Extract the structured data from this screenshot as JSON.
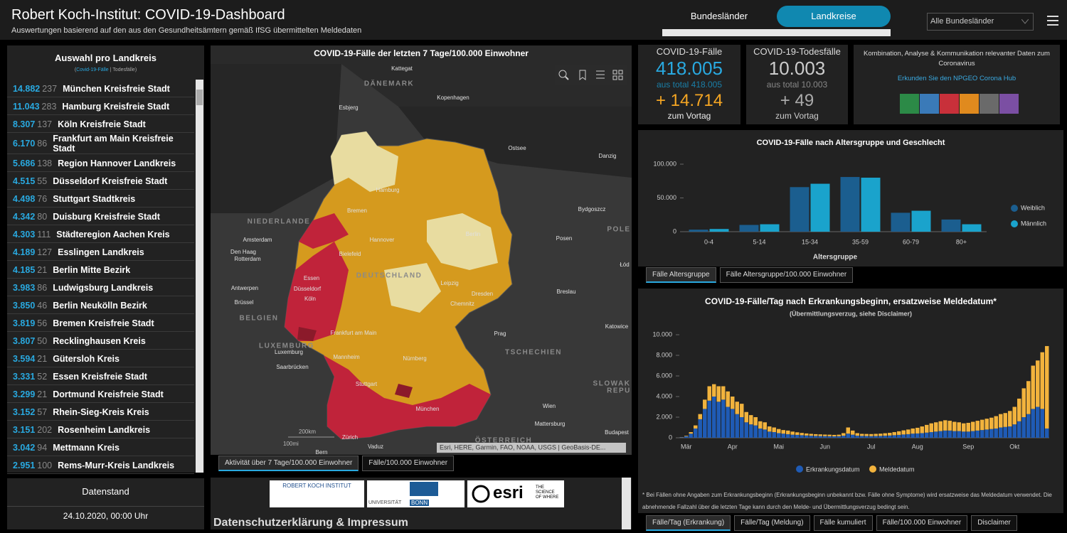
{
  "header": {
    "title": "Robert Koch-Institut: COVID-19-Dashboard",
    "subtitle": "Auswertungen basierend auf den aus den Gesundheitsämtern gemäß IfSG übermittelten Meldedaten",
    "tabs": [
      "Bundesländer",
      "Landkreise"
    ],
    "dropdown": "Alle Bundesländer"
  },
  "district_list": {
    "title": "Auswahl pro Landkreis",
    "legend": {
      "open": "(",
      "cases": "Covid-19-Fälle",
      "separator": "|",
      "deaths": "Todesfälle",
      "close": ")"
    },
    "rows": [
      [
        "14.882",
        "237",
        "München Kreisfreie Stadt"
      ],
      [
        "11.043",
        "283",
        "Hamburg Kreisfreie Stadt"
      ],
      [
        "8.307",
        "137",
        "Köln Kreisfreie Stadt"
      ],
      [
        "6.170",
        "86",
        "Frankfurt am Main Kreisfreie Stadt"
      ],
      [
        "5.686",
        "138",
        "Region Hannover Landkreis"
      ],
      [
        "4.515",
        "55",
        "Düsseldorf Kreisfreie Stadt"
      ],
      [
        "4.498",
        "76",
        "Stuttgart Stadtkreis"
      ],
      [
        "4.342",
        "80",
        "Duisburg Kreisfreie Stadt"
      ],
      [
        "4.303",
        "111",
        "Städteregion Aachen Kreis"
      ],
      [
        "4.189",
        "127",
        "Esslingen Landkreis"
      ],
      [
        "4.185",
        "21",
        "Berlin Mitte Bezirk"
      ],
      [
        "3.983",
        "86",
        "Ludwigsburg Landkreis"
      ],
      [
        "3.850",
        "46",
        "Berlin Neukölln Bezirk"
      ],
      [
        "3.819",
        "56",
        "Bremen Kreisfreie Stadt"
      ],
      [
        "3.807",
        "50",
        "Recklinghausen Kreis"
      ],
      [
        "3.594",
        "21",
        "Gütersloh Kreis"
      ],
      [
        "3.331",
        "52",
        "Essen Kreisfreie Stadt"
      ],
      [
        "3.299",
        "21",
        "Dortmund Kreisfreie Stadt"
      ],
      [
        "3.152",
        "57",
        "Rhein-Sieg-Kreis Kreis"
      ],
      [
        "3.151",
        "202",
        "Rosenheim Landkreis"
      ],
      [
        "3.042",
        "94",
        "Mettmann Kreis"
      ],
      [
        "2.951",
        "100",
        "Rems-Murr-Kreis Landkreis"
      ]
    ]
  },
  "data_status": {
    "title": "Datenstand",
    "value": "24.10.2020, 00:00 Uhr"
  },
  "map": {
    "title": "COVID-19-Fälle der letzten 7 Tage/100.000 Einwohner",
    "labels": [
      "Kattegat",
      "DÄNEMARK",
      "Kopenhagen",
      "Esbjerg",
      "Ostsee",
      "Danzig",
      "Hamburg",
      "Bremen",
      "Bydgoszcz",
      "NIEDERLANDE",
      "POLE",
      "Berlin",
      "Posen",
      "Amsterdam",
      "Hannover",
      "Den Haag",
      "Rotterdam",
      "Bielefeld",
      "Łód",
      "DEUTSCHLAND",
      "Essen",
      "Leipzig",
      "Antwerpen",
      "Düsseldorf",
      "Breslau",
      "Dresden",
      "Köln",
      "Brüssel",
      "Chemnitz",
      "BELGIEN",
      "Katowice",
      "Frankfurt am Main",
      "Prag",
      "LUXEMBURG",
      "Luxemburg",
      "TSCHECHIEN",
      "Mannheim",
      "Nürnberg",
      "Saarbrücken",
      "Stuttgart",
      "SLOWAK",
      "REPU",
      "Wien",
      "München",
      "Mattersburg",
      "Budapest",
      "Zürich",
      "ÖSTERREICH",
      "Vaduz",
      "Bern"
    ],
    "scale": [
      "200km",
      "100mi"
    ],
    "attribution": "Esri, HERE, Garmin, FAO, NOAA, USGS | GeoBasis-DE...",
    "tabs": [
      "Aktivität über 7 Tage/100.000 Einwohner",
      "Fälle/100.000 Einwohner"
    ]
  },
  "footer": {
    "logos": [
      "ROBERT KOCH INSTITUT",
      "UNIVERSITÄT",
      "BONN",
      "esri",
      "THE SCIENCE OF WHERE"
    ],
    "heading": "Datenschutzerklärung & Impressum"
  },
  "kpis": [
    {
      "label": "COVID-19-Fälle",
      "value": "418.005",
      "total": "aus total 418.005",
      "delta": "+ 14.714",
      "delta_label": "zum Vortag"
    },
    {
      "label": "COVID-19-Todesfälle",
      "value": "10.003",
      "total": "aus total 10.003",
      "delta": "+ 49",
      "delta_label": "zum Vortag"
    }
  ],
  "hub": {
    "text": "Kombination, Analyse & Kommunikation relevanter Daten zum Coronavirus",
    "link": "Erkunden Sie den NPGEO Corona Hub"
  },
  "chart_data": [
    {
      "type": "bar",
      "title": "COVID-19-Fälle nach Altersgruppe und Geschlecht",
      "x_label": "Altersgruppe",
      "categories": [
        "0-4",
        "5-14",
        "15-34",
        "35-59",
        "60-79",
        "80+"
      ],
      "series": [
        {
          "name": "Weiblich",
          "color": "#1b5e8f",
          "values": [
            3000,
            10000,
            66000,
            81000,
            28000,
            18000
          ]
        },
        {
          "name": "Männlich",
          "color": "#1aa3cc",
          "values": [
            4000,
            11000,
            71000,
            80000,
            31000,
            11000
          ]
        }
      ],
      "ylim": [
        0,
        100000
      ],
      "yticks": [
        0,
        {
          "value": 50000,
          "label": "50.000"
        },
        {
          "value": 100000,
          "label": "100.000"
        }
      ],
      "legend": "right",
      "tabs": [
        "Fälle Altersgruppe",
        "Fälle Altersgruppe/100.000 Einwohner"
      ]
    },
    {
      "type": "stacked_bar",
      "title": "COVID-19-Fälle/Tag nach Erkrankungsbeginn, ersatzweise Meldedatum*",
      "subtitle": "(Übermittlungsverzug, siehe Disclaimer)",
      "categories": [
        null,
        "Mär",
        null,
        null,
        null,
        null,
        null,
        null,
        null,
        null,
        null,
        "Apr",
        null,
        null,
        null,
        null,
        null,
        null,
        null,
        null,
        null,
        "Mai",
        null,
        null,
        null,
        null,
        null,
        null,
        null,
        null,
        null,
        "Jun",
        null,
        null,
        null,
        null,
        null,
        null,
        null,
        null,
        null,
        "Jul",
        null,
        null,
        null,
        null,
        null,
        null,
        null,
        null,
        null,
        "Aug",
        null,
        null,
        null,
        null,
        null,
        null,
        null,
        null,
        null,
        null,
        "Sep",
        null,
        null,
        null,
        null,
        null,
        null,
        null,
        null,
        null,
        "Okt",
        null,
        null,
        null,
        null,
        null,
        null,
        null
      ],
      "series": [
        {
          "name": "Erkrankungsdatum",
          "color": "#1f5bb5",
          "values": [
            50,
            150,
            400,
            900,
            1800,
            2800,
            3600,
            4000,
            3500,
            3700,
            3000,
            2800,
            2300,
            2000,
            1500,
            1300,
            1200,
            900,
            800,
            600,
            550,
            450,
            400,
            350,
            300,
            280,
            250,
            220,
            200,
            180,
            170,
            160,
            150,
            140,
            150,
            200,
            400,
            300,
            200,
            180,
            170,
            160,
            170,
            180,
            200,
            220,
            250,
            280,
            320,
            350,
            400,
            420,
            450,
            500,
            550,
            600,
            650,
            700,
            700,
            650,
            650,
            600,
            600,
            650,
            700,
            750,
            800,
            850,
            900,
            1000,
            1050,
            1100,
            1300,
            1600,
            2000,
            2300,
            2800,
            3000,
            2800,
            900
          ]
        },
        {
          "name": "Meldedatum",
          "color": "#f2b33d",
          "values": [
            20,
            50,
            150,
            300,
            500,
            900,
            1400,
            1200,
            1500,
            1300,
            1500,
            1200,
            1200,
            1300,
            1000,
            900,
            800,
            700,
            700,
            500,
            450,
            400,
            350,
            350,
            300,
            250,
            220,
            200,
            180,
            170,
            160,
            150,
            150,
            140,
            150,
            250,
            600,
            400,
            250,
            200,
            200,
            200,
            210,
            220,
            240,
            260,
            300,
            350,
            400,
            450,
            500,
            550,
            650,
            750,
            850,
            900,
            950,
            1000,
            950,
            900,
            850,
            800,
            850,
            900,
            950,
            1000,
            1050,
            1100,
            1200,
            1300,
            1350,
            1500,
            1700,
            2200,
            2800,
            3200,
            4200,
            4500,
            5500,
            8000
          ]
        }
      ],
      "ylim": [
        0,
        10000
      ],
      "yticks": [
        0,
        {
          "value": 2000,
          "label": "2.000"
        },
        {
          "value": 4000,
          "label": "4.000"
        },
        {
          "value": 6000,
          "label": "6.000"
        },
        {
          "value": 8000,
          "label": "8.000"
        },
        {
          "value": 10000,
          "label": "10.000"
        }
      ],
      "legend": "bottom",
      "footnote": "* Bei Fällen ohne Angaben zum Erkrankungsbeginn (Erkrankungsbeginn unbekannt bzw. Fälle ohne Symptome) wird ersatzweise das Meldedatum verwendet. Die abnehmende Fallzahl über die letzten Tage kann durch den Melde- und Übermittlungsverzug bedingt sein.",
      "tabs": [
        "Fälle/Tag (Erkrankung)",
        "Fälle/Tag (Meldung)",
        "Fälle kumuliert",
        "Fälle/100.000 Einwohner",
        "Disclaimer"
      ]
    }
  ]
}
